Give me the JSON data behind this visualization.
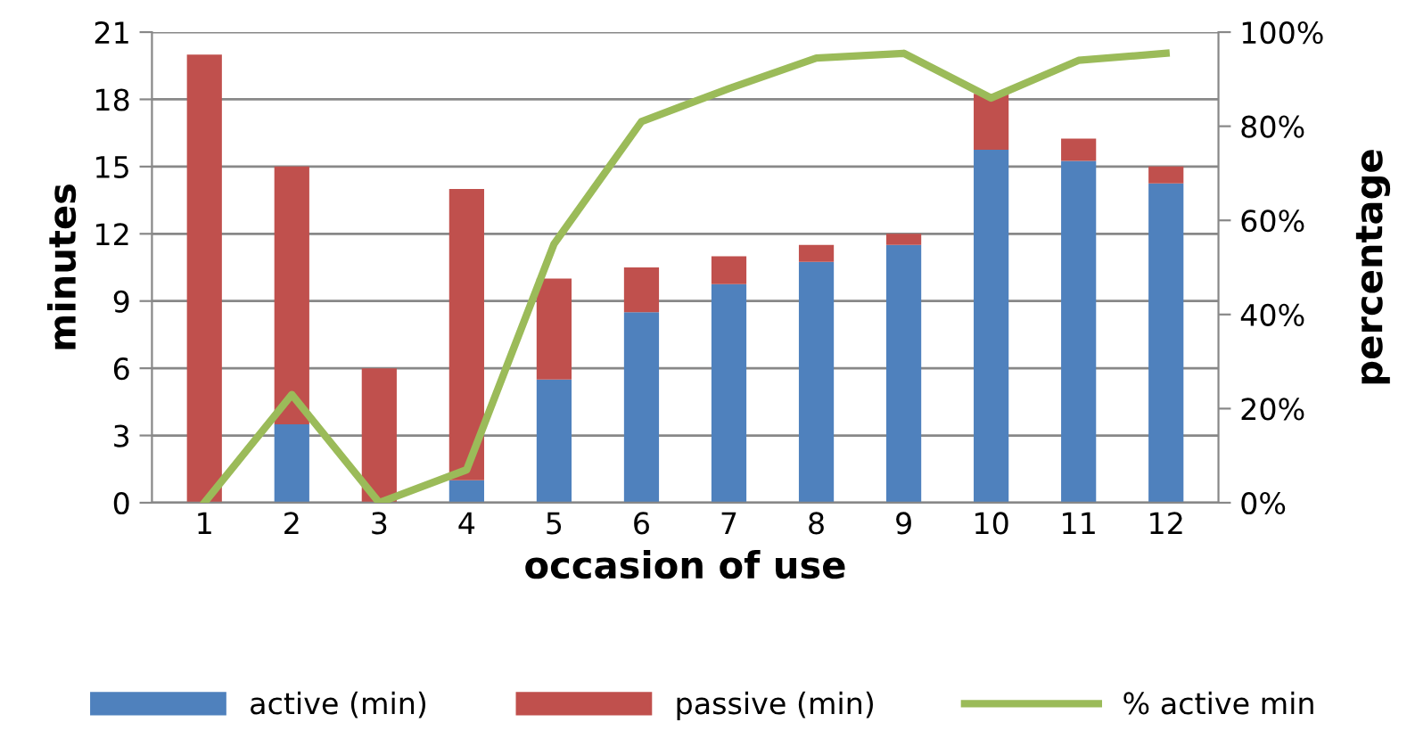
{
  "chart_data": {
    "type": "bar",
    "stacked": true,
    "xlabel": "occasion of use",
    "ylabel": "minutes",
    "y2label": "percentage",
    "categories": [
      "1",
      "2",
      "3",
      "4",
      "5",
      "6",
      "7",
      "8",
      "9",
      "10",
      "11",
      "12"
    ],
    "series": [
      {
        "name": "active (min)",
        "color": "#4f81bd",
        "values": [
          0,
          3.5,
          0,
          1,
          5.5,
          8.5,
          9.75,
          10.75,
          11.5,
          15.75,
          15.25,
          14.25
        ]
      },
      {
        "name": "passive (min)",
        "color": "#c0504d",
        "values": [
          20,
          11.5,
          6,
          13,
          4.5,
          2,
          1.25,
          0.75,
          0.5,
          2.5,
          1,
          0.75
        ]
      },
      {
        "name": "% active min",
        "type": "line",
        "axis": "y2",
        "color": "#9bbb59",
        "values": [
          0,
          23,
          0,
          7,
          55,
          81,
          88,
          94.5,
          95.5,
          86,
          94,
          95.5
        ]
      }
    ],
    "ylim": [
      0,
      21
    ],
    "yticks": [
      0,
      3,
      6,
      9,
      12,
      15,
      18,
      21
    ],
    "y2lim": [
      0,
      100
    ],
    "y2ticks": [
      {
        "value": 0,
        "label": "0%"
      },
      {
        "value": 20,
        "label": "20%"
      },
      {
        "value": 40,
        "label": "40%"
      },
      {
        "value": 60,
        "label": "60%"
      },
      {
        "value": 80,
        "label": "80%"
      },
      {
        "value": 100,
        "label": "100%"
      }
    ],
    "grid": "y",
    "legend": "bottom",
    "marker": "none"
  }
}
